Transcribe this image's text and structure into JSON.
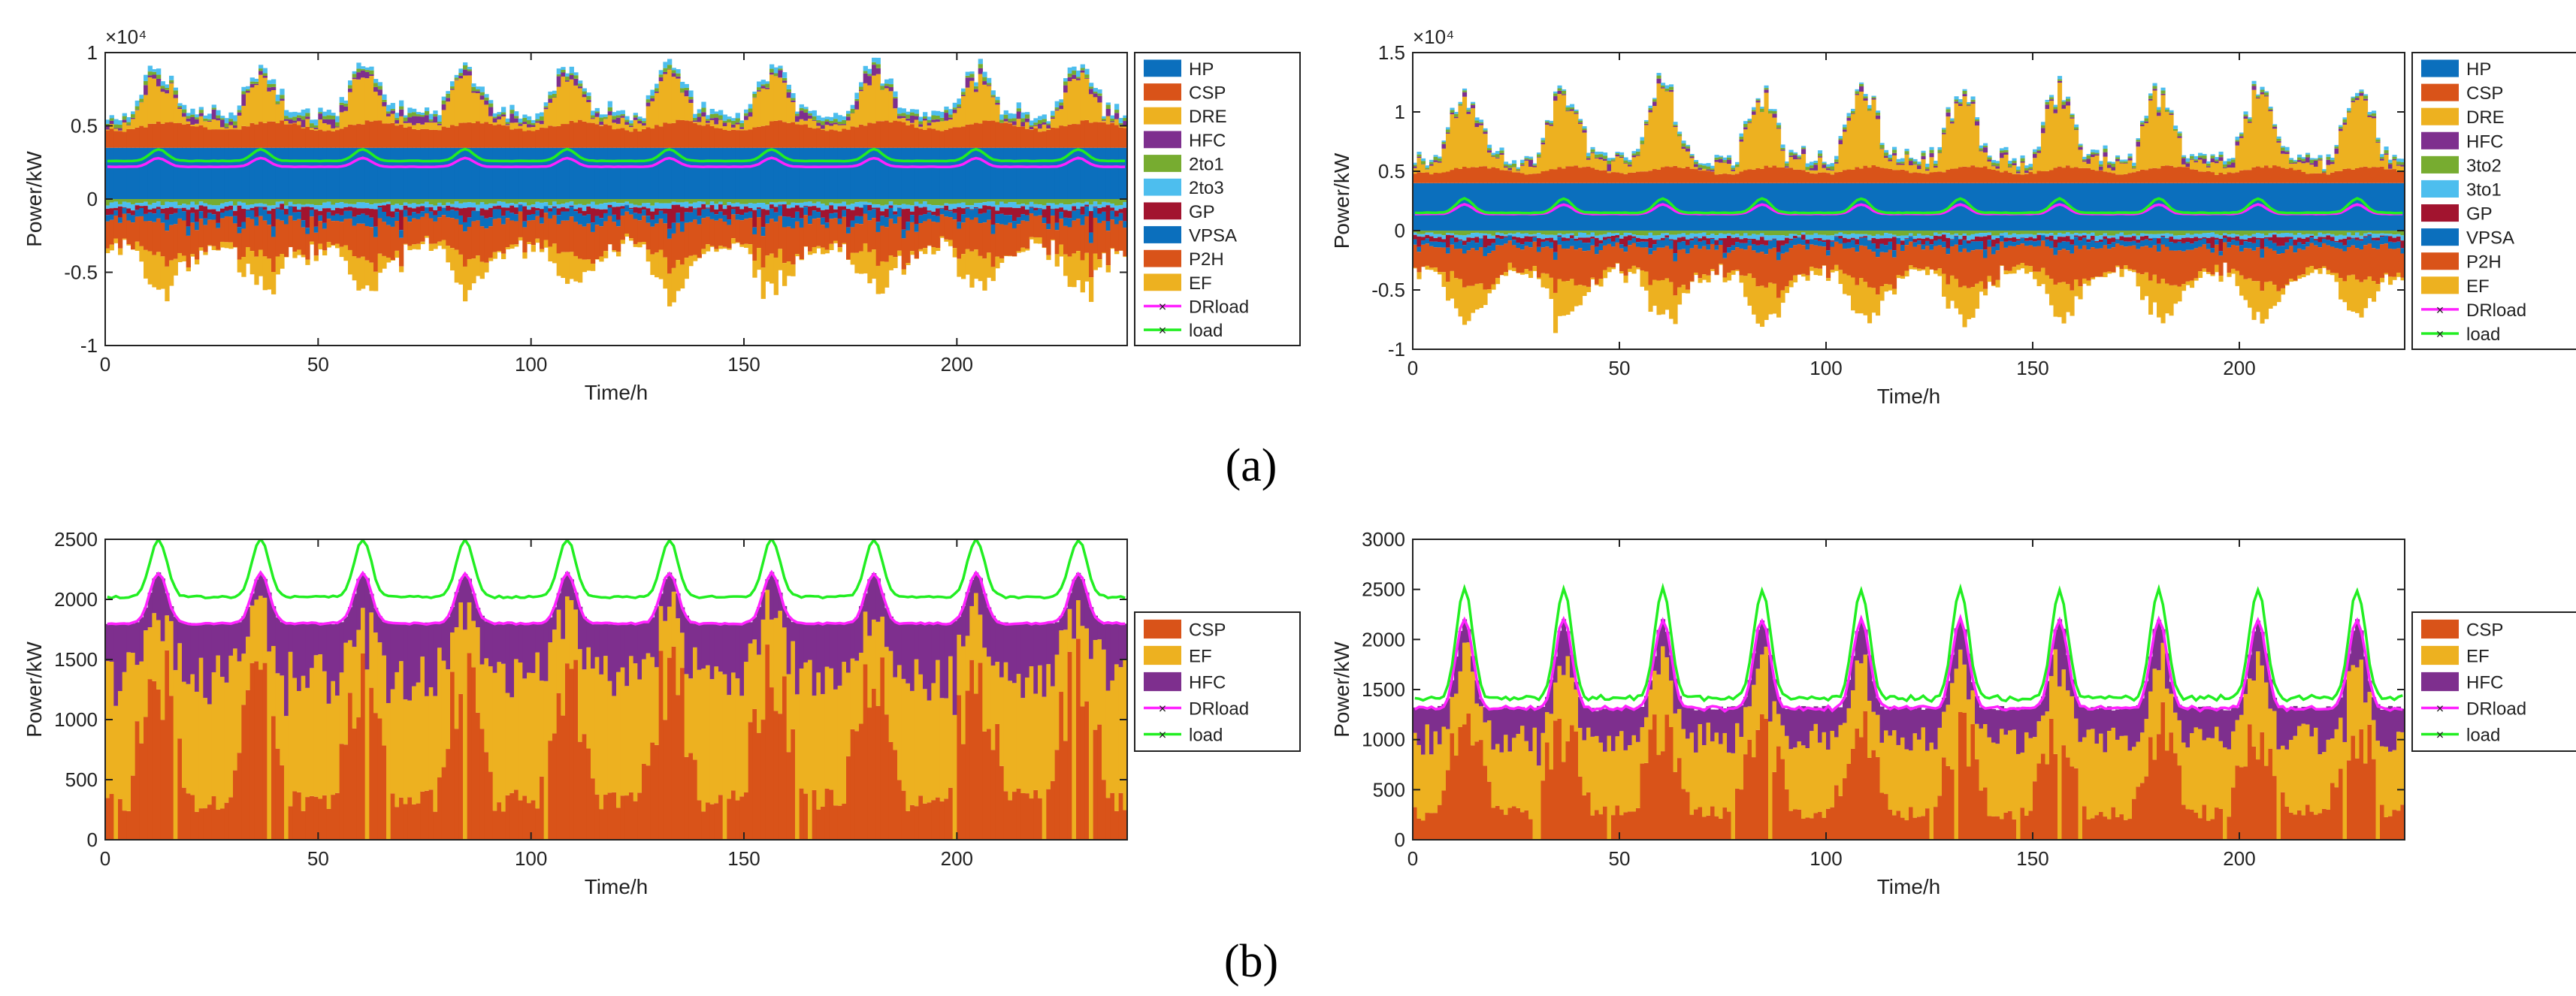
{
  "colors": {
    "HP": "#0b6fbd",
    "CSP": "#d95319",
    "DRE": "#edb120",
    "HFC": "#7e2f8e",
    "2to1": "#77ac30",
    "2to3": "#4dbeee",
    "3to2": "#77ac30",
    "3to1": "#4dbeee",
    "GP": "#a2142f",
    "VPSA": "#0b6fbd",
    "P2H": "#d95319",
    "EF": "#edb120",
    "DRload": "#ff22ff",
    "load": "#22ee22"
  },
  "captions": {
    "a": "(a)",
    "b": "(b)"
  },
  "chart_data": [
    {
      "id": "a1",
      "type": "bar",
      "stacked": true,
      "xlabel": "Time/h",
      "ylabel": "Power/kW",
      "exponent_label": "×10⁴",
      "xlim": [
        0,
        240
      ],
      "ylim": [
        -1,
        1
      ],
      "xticks": [
        0,
        50,
        100,
        150,
        200
      ],
      "yticks": [
        -1,
        -0.5,
        0,
        0.5,
        1
      ],
      "ytick_labels": [
        "-1",
        "-0.5",
        "0",
        "0.5",
        "1"
      ],
      "legend_position": "right",
      "x": "hours 1–240",
      "series_positive": [
        {
          "name": "HP",
          "profile": "constant",
          "value": 0.35
        },
        {
          "name": "CSP",
          "profile": "wavy",
          "base": 0.12,
          "amp": 0.06
        },
        {
          "name": "DRE",
          "profile": "solar",
          "peak": 0.28
        },
        {
          "name": "HFC",
          "profile": "spiky",
          "base": 0.03,
          "amp": 0.05
        },
        {
          "name": "2to1",
          "profile": "small",
          "base": 0.02
        },
        {
          "name": "2to3",
          "profile": "small",
          "base": 0.03
        }
      ],
      "series_negative": [
        {
          "name": "2to1",
          "profile": "small",
          "base": -0.03
        },
        {
          "name": "2to3",
          "profile": "small",
          "base": -0.03
        },
        {
          "name": "GP",
          "profile": "spiky",
          "base": -0.06,
          "amp": -0.1
        },
        {
          "name": "VPSA",
          "profile": "wavy",
          "base": -0.04,
          "amp": -0.03
        },
        {
          "name": "P2H",
          "profile": "wavy",
          "base": -0.16,
          "amp": -0.08
        },
        {
          "name": "EF",
          "profile": "solar",
          "peak": -0.2
        }
      ],
      "lines": [
        {
          "name": "DRload",
          "base": 0.22,
          "amp": 0.06
        },
        {
          "name": "load",
          "base": 0.26,
          "amp": 0.08
        }
      ],
      "legend": [
        "HP",
        "CSP",
        "DRE",
        "HFC",
        "2to1",
        "2to3",
        "GP",
        "VPSA",
        "P2H",
        "EF",
        "DRload",
        "load"
      ]
    },
    {
      "id": "a2",
      "type": "bar",
      "stacked": true,
      "xlabel": "Time/h",
      "ylabel": "Power/kW",
      "exponent_label": "×10⁴",
      "xlim": [
        0,
        240
      ],
      "ylim": [
        -1,
        1.5
      ],
      "xticks": [
        0,
        50,
        100,
        150,
        200
      ],
      "yticks": [
        -1,
        -0.5,
        0,
        0.5,
        1,
        1.5
      ],
      "ytick_labels": [
        "-1",
        "-0.5",
        "0",
        "0.5",
        "1",
        "1.5"
      ],
      "legend_position": "right",
      "x": "hours 1–240",
      "series_positive": [
        {
          "name": "HP",
          "profile": "constant",
          "value": 0.4
        },
        {
          "name": "CSP",
          "profile": "wavy",
          "base": 0.08,
          "amp": 0.06
        },
        {
          "name": "DRE",
          "profile": "solar",
          "peak": 0.55
        },
        {
          "name": "HFC",
          "profile": "spiky",
          "base": 0.02,
          "amp": 0.04
        },
        {
          "name": "3to2",
          "profile": "small",
          "base": 0.02
        },
        {
          "name": "3to1",
          "profile": "small",
          "base": 0.02
        }
      ],
      "series_negative": [
        {
          "name": "3to2",
          "profile": "small",
          "base": -0.03
        },
        {
          "name": "3to1",
          "profile": "small",
          "base": -0.03
        },
        {
          "name": "GP",
          "profile": "spiky",
          "base": -0.05,
          "amp": -0.08
        },
        {
          "name": "VPSA",
          "profile": "wavy",
          "base": -0.04,
          "amp": -0.03
        },
        {
          "name": "P2H",
          "profile": "wavy",
          "base": -0.18,
          "amp": -0.12
        },
        {
          "name": "EF",
          "profile": "solar",
          "peak": -0.28
        }
      ],
      "lines": [
        {
          "name": "DRload",
          "base": 0.14,
          "amp": 0.08
        },
        {
          "name": "load",
          "base": 0.15,
          "amp": 0.12
        }
      ],
      "legend": [
        "HP",
        "CSP",
        "DRE",
        "HFC",
        "3to2",
        "3to1",
        "GP",
        "VPSA",
        "P2H",
        "EF",
        "DRload",
        "load"
      ]
    },
    {
      "id": "b1",
      "type": "bar",
      "stacked": true,
      "xlabel": "Time/h",
      "ylabel": "Power/kW",
      "xlim": [
        0,
        240
      ],
      "ylim": [
        0,
        2500
      ],
      "xticks": [
        0,
        50,
        100,
        150,
        200
      ],
      "yticks": [
        0,
        500,
        1000,
        1500,
        2000,
        2500
      ],
      "ytick_labels": [
        "0",
        "500",
        "1000",
        "1500",
        "2000",
        "2500"
      ],
      "legend_position": "right",
      "x": "hours 1–240",
      "series_positive": [
        {
          "name": "CSP",
          "profile": "csp",
          "base": 1100,
          "amp": 700
        },
        {
          "name": "EF",
          "profile": "fill",
          "share": 0.65
        },
        {
          "name": "HFC",
          "profile": "fill",
          "share": 0.35
        }
      ],
      "lines": [
        {
          "name": "DRload",
          "base": 1800,
          "amp": 420,
          "floor": 1550
        },
        {
          "name": "load",
          "base": 2020,
          "amp": 480,
          "floor": 1900
        }
      ],
      "legend": [
        "CSP",
        "EF",
        "HFC",
        "DRload",
        "load"
      ]
    },
    {
      "id": "b2",
      "type": "bar",
      "stacked": true,
      "xlabel": "Time/h",
      "ylabel": "Power/kW",
      "xlim": [
        0,
        240
      ],
      "ylim": [
        0,
        3000
      ],
      "xticks": [
        0,
        50,
        100,
        150,
        200
      ],
      "yticks": [
        0,
        500,
        1000,
        1500,
        2000,
        2500,
        3000
      ],
      "ytick_labels": [
        "0",
        "500",
        "1000",
        "1500",
        "2000",
        "2500",
        "3000"
      ],
      "legend_position": "right",
      "x": "hours 1–240",
      "series_positive": [
        {
          "name": "CSP",
          "profile": "csp",
          "base": 900,
          "amp": 700
        },
        {
          "name": "EF",
          "profile": "fill",
          "share": 0.65
        },
        {
          "name": "HFC",
          "profile": "fill",
          "share": 0.35
        }
      ],
      "lines": [
        {
          "name": "DRload",
          "base": 1300,
          "amp": 900,
          "floor": 1300
        },
        {
          "name": "load",
          "base": 1400,
          "amp": 1100,
          "floor": 1400
        }
      ],
      "legend": [
        "CSP",
        "EF",
        "HFC",
        "DRload",
        "load"
      ]
    }
  ]
}
